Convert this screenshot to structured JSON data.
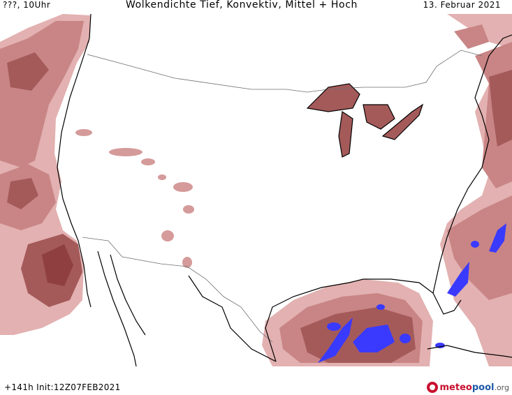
{
  "header": {
    "left": "???, 10Uhr",
    "title": "Wolkendichte  Tief, Konvektiv, Mittel + Hoch",
    "date": "13. Februar 2021"
  },
  "footer": {
    "run_info": "+141h Init:12Z07FEB2021",
    "logo_part1": "meteo",
    "logo_part2": "pool",
    "logo_part3": ".org"
  },
  "colors": {
    "cloud_low": "#e3b1b1",
    "cloud_mid": "#c98585",
    "cloud_high": "#a55a5a",
    "cloud_max": "#8f3f3f",
    "convective": "#3a3aff",
    "coastline": "#000000",
    "border": "#6e6e6e"
  }
}
